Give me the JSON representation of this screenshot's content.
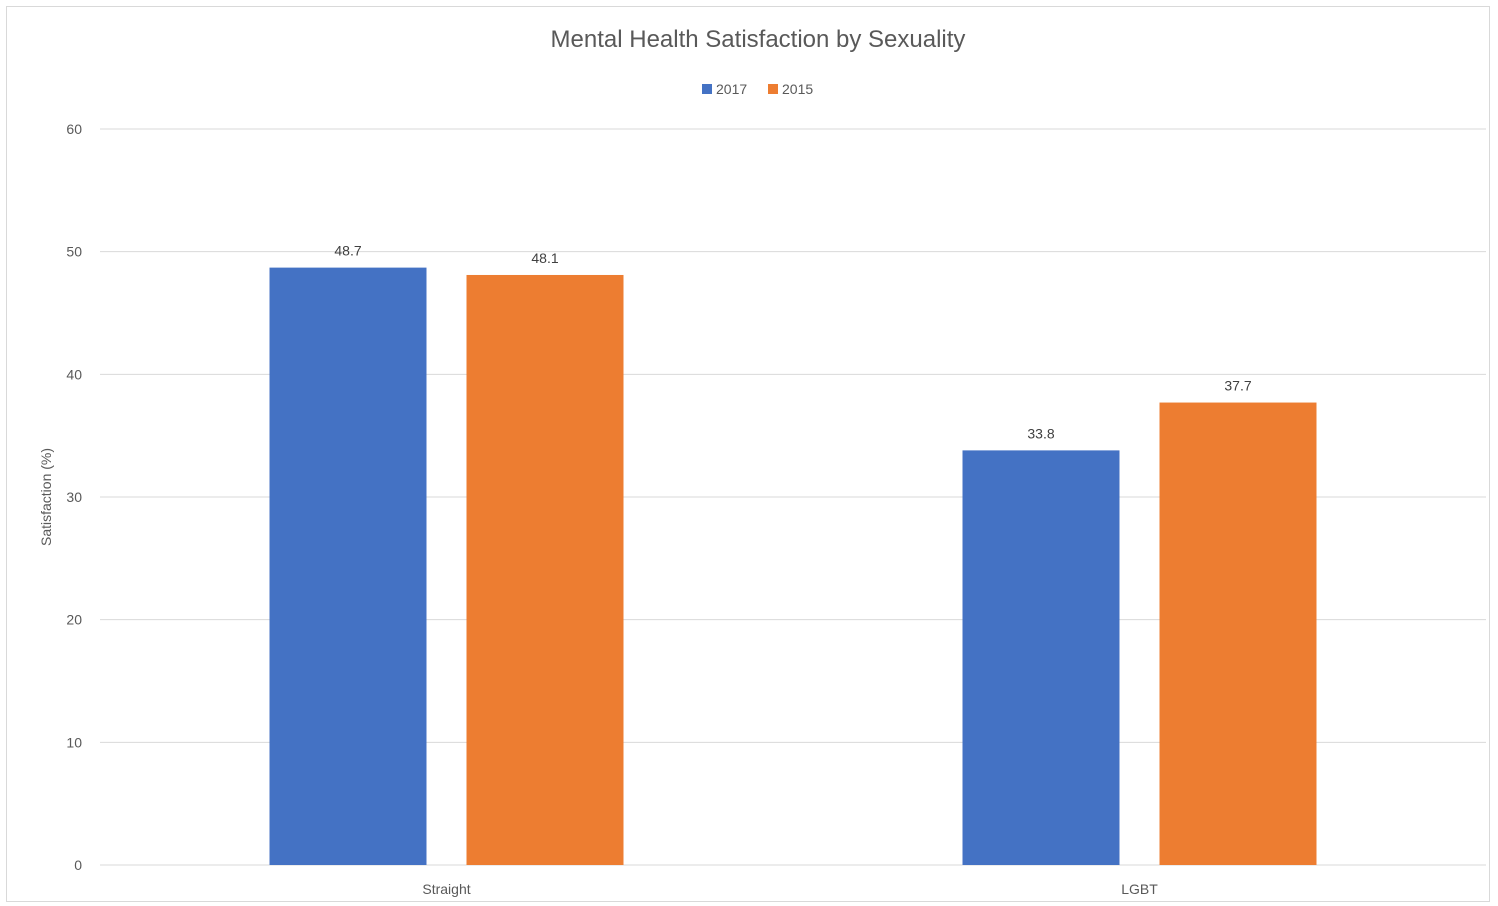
{
  "chart_data": {
    "type": "bar",
    "title": "Mental Health Satisfaction by Sexuality",
    "xlabel": "",
    "ylabel": "Satisfaction (%)",
    "categories": [
      "Straight",
      "LGBT"
    ],
    "series": [
      {
        "name": "2017",
        "values": [
          48.7,
          33.8
        ],
        "color": "#4472c4"
      },
      {
        "name": "2015",
        "values": [
          48.1,
          37.7
        ],
        "color": "#ed7d31"
      }
    ],
    "ylim": [
      0,
      60
    ],
    "yticks": [
      0,
      10,
      20,
      30,
      40,
      50,
      60
    ],
    "grid": true,
    "legend_position": "top",
    "data_labels": true
  }
}
